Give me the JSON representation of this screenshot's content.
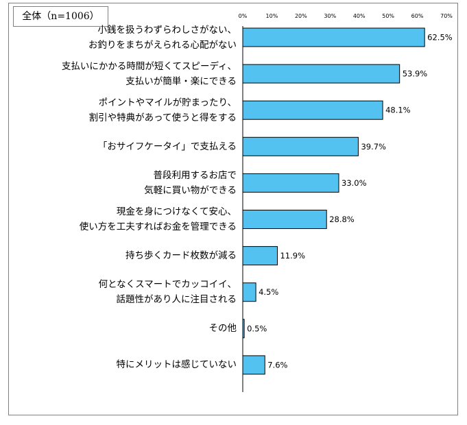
{
  "chart_data": {
    "type": "bar",
    "orientation": "horizontal",
    "title": "全体（n=1006）",
    "categories": [
      [
        "小銭を扱うわずらわしさがない、",
        "お釣りをまちがえられる心配がない"
      ],
      [
        "支払いにかかる時間が短くてスピーディ、",
        "支払いが簡単・楽にできる"
      ],
      [
        "ポイントやマイルが貯まったり、",
        "割引や特典があって使うと得をする"
      ],
      [
        "「おサイフケータイ」で支払える"
      ],
      [
        "普段利用するお店で",
        "気軽に買い物ができる"
      ],
      [
        "現金を身につけなくて安心、",
        "使い方を工夫すればお金を管理できる"
      ],
      [
        "持ち歩くカード枚数が減る"
      ],
      [
        "何となくスマートでカッコイイ、",
        "話題性があり人に注目される"
      ],
      [
        "その他"
      ],
      [
        "特にメリットは感じていない"
      ]
    ],
    "values": [
      62.5,
      53.9,
      48.1,
      39.7,
      33.0,
      28.8,
      11.9,
      4.5,
      0.5,
      7.6
    ],
    "value_labels": [
      "62.5%",
      "53.9%",
      "48.1%",
      "39.7%",
      "33.0%",
      "28.8%",
      "11.9%",
      "4.5%",
      "0.5%",
      "7.6%"
    ],
    "x_ticks": [
      "0%",
      "10%",
      "20%",
      "30%",
      "40%",
      "50%",
      "60%",
      "70%"
    ],
    "xlim": [
      0,
      70
    ],
    "grid": false,
    "bar_color": "#53c2f0",
    "bar_edge_color": "#000000"
  }
}
